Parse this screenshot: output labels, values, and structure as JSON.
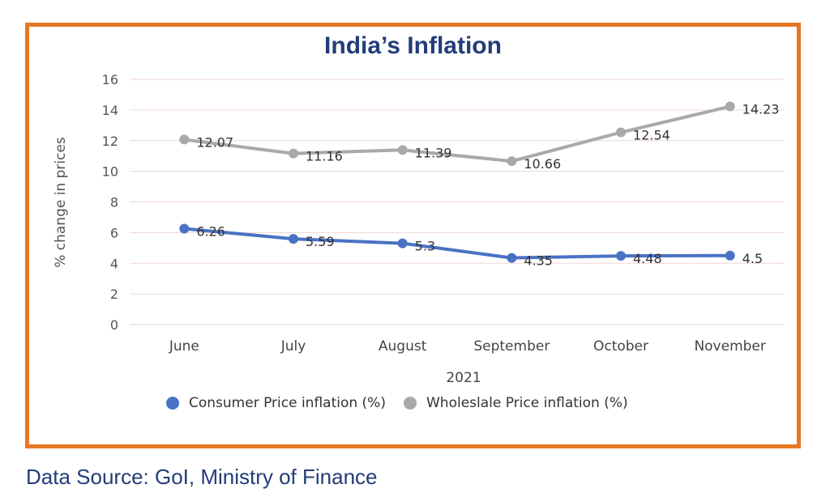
{
  "chart_data": {
    "type": "line",
    "title": "India’s Inflation",
    "xlabel": "2021",
    "ylabel": "% change in prices",
    "categories": [
      "June",
      "July",
      "August",
      "September",
      "October",
      "November"
    ],
    "ylim": [
      0,
      16
    ],
    "yticks": [
      0,
      2,
      4,
      6,
      8,
      10,
      12,
      14,
      16
    ],
    "grid": true,
    "legend_position": "bottom",
    "series": [
      {
        "name": "Consumer Price inflation (%)",
        "color": "#4a72c4",
        "values": [
          6.26,
          5.59,
          5.3,
          4.35,
          4.48,
          4.5
        ],
        "labels": [
          "6.26",
          "5.59",
          "5.3",
          "4.35",
          "4.48",
          "4.5"
        ]
      },
      {
        "name": "Wholeslale Price inflation (%)",
        "color": "#a9a9a9",
        "values": [
          12.07,
          11.16,
          11.39,
          10.66,
          12.54,
          14.23
        ],
        "labels": [
          "12.07",
          "11.16",
          "11.39",
          "10.66",
          "12.54",
          "14.23"
        ]
      }
    ]
  },
  "source": "Data Source: GoI, Ministry of Finance",
  "colors": {
    "frame": "#e87722",
    "title": "#233d7a",
    "grid": "#f0d6d6"
  }
}
